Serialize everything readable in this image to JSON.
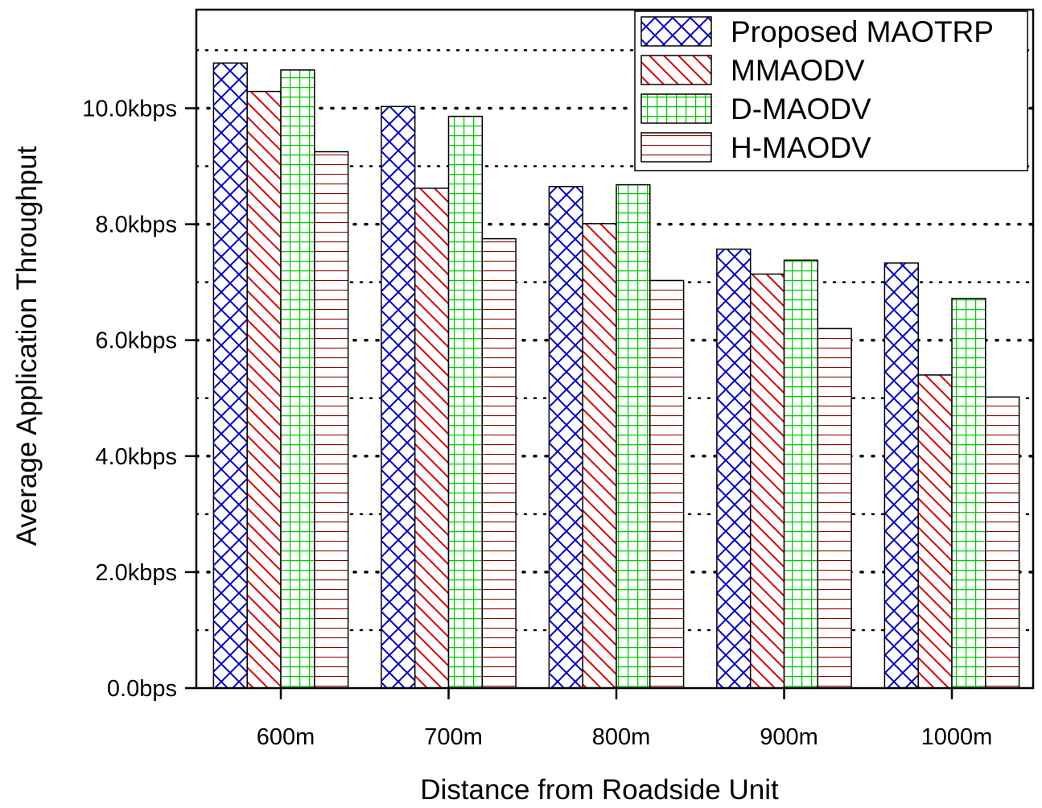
{
  "chart_data": {
    "type": "bar",
    "title": "",
    "xlabel": "Distance from Roadside Unit",
    "ylabel": "Average Application Throughput",
    "categories": [
      "600m",
      "700m",
      "800m",
      "900m",
      "1000m"
    ],
    "y_ticks": [
      0,
      2,
      4,
      6,
      8,
      10
    ],
    "y_tick_labels": [
      "0.0bps",
      "2.0kbps",
      "4.0kbps",
      "6.0kbps",
      "8.0kbps",
      "10.0kbps"
    ],
    "ylim": [
      0,
      11.7
    ],
    "grid": "dotted horizontal",
    "legend_position": "top-right",
    "series": [
      {
        "name": "Proposed MAOTRP",
        "pattern": "crosshatch",
        "color": "#0000cc",
        "values": [
          10.78,
          10.03,
          8.65,
          7.57,
          7.33
        ]
      },
      {
        "name": "MMAODV",
        "pattern": "diagonal",
        "color": "#dd0000",
        "values": [
          10.29,
          8.62,
          8.01,
          7.14,
          5.4
        ]
      },
      {
        "name": "D-MAODV",
        "pattern": "grid",
        "color": "#00cc00",
        "values": [
          10.66,
          9.86,
          8.68,
          7.38,
          6.72
        ]
      },
      {
        "name": "H-MAODV",
        "pattern": "horizontal",
        "color": "#880000",
        "values": [
          9.25,
          7.75,
          7.03,
          6.2,
          5.02
        ]
      }
    ]
  }
}
